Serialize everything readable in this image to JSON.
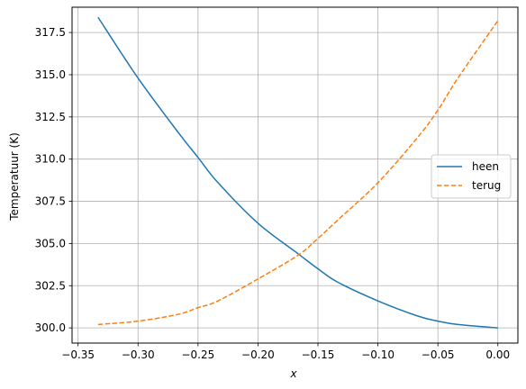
{
  "chart_data": {
    "type": "line",
    "xlabel": "x",
    "ylabel": "Temperatuur (K)",
    "xlim": [
      -0.355,
      0.0167
    ],
    "ylim": [
      299.1,
      319.0
    ],
    "xticks": [
      -0.35,
      -0.3,
      -0.25,
      -0.2,
      -0.15,
      -0.1,
      -0.05,
      0.0
    ],
    "xtick_labels": [
      "−0.35",
      "−0.30",
      "−0.25",
      "−0.20",
      "−0.15",
      "−0.10",
      "−0.05",
      "0.00"
    ],
    "yticks": [
      300.0,
      302.5,
      305.0,
      307.5,
      310.0,
      312.5,
      315.0,
      317.5
    ],
    "ytick_labels": [
      "300.0",
      "302.5",
      "305.0",
      "307.5",
      "310.0",
      "312.5",
      "315.0",
      "317.5"
    ],
    "grid": true,
    "legend_position": "center-right",
    "series": [
      {
        "name": "heen",
        "color": "#1f77b4",
        "dash": "solid",
        "x": [
          -0.3333,
          -0.3,
          -0.2667,
          -0.25,
          -0.2333,
          -0.2,
          -0.1667,
          -0.15,
          -0.1333,
          -0.1,
          -0.0667,
          -0.05,
          -0.0333,
          0.0
        ],
        "y": [
          318.4,
          314.8,
          311.6,
          310.1,
          308.6,
          306.2,
          304.4,
          303.5,
          302.7,
          301.6,
          300.7,
          300.4,
          300.2,
          300.0
        ]
      },
      {
        "name": "terug",
        "color": "#ff7f0e",
        "dash": "dashed",
        "x": [
          -0.3333,
          -0.3,
          -0.2667,
          -0.25,
          -0.2333,
          -0.2,
          -0.1667,
          -0.15,
          -0.1333,
          -0.1,
          -0.0667,
          -0.05,
          -0.0333,
          0.0
        ],
        "y": [
          300.2,
          300.4,
          300.8,
          301.2,
          301.6,
          302.9,
          304.3,
          305.3,
          306.4,
          308.6,
          311.3,
          312.9,
          314.8,
          318.2
        ]
      }
    ]
  }
}
